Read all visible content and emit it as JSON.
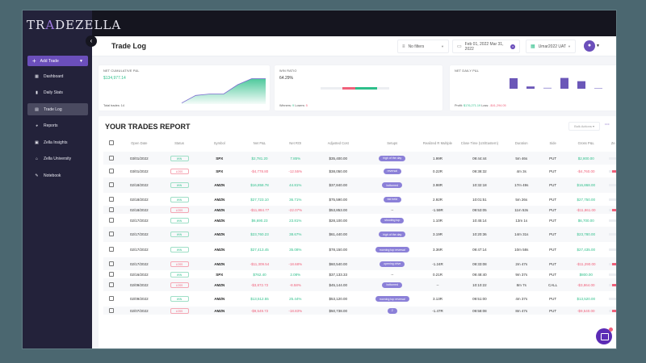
{
  "app": {
    "logo_pre": "TR",
    "logo_mid": "A",
    "logo_post": "DEZELLA"
  },
  "sidebar": {
    "add_trade": "Add Trade",
    "items": [
      {
        "label": "Dashboard",
        "icon": "dashboard-icon"
      },
      {
        "label": "Daily Stats",
        "icon": "bar-chart-icon"
      },
      {
        "label": "Trade Log",
        "icon": "book-icon",
        "active": true
      },
      {
        "label": "Reports",
        "icon": "pie-chart-icon"
      },
      {
        "label": "Zella Insights",
        "icon": "insights-icon"
      },
      {
        "label": "Zella University",
        "icon": "university-icon"
      },
      {
        "label": "Notebook",
        "icon": "pencil-icon"
      }
    ]
  },
  "header": {
    "title": "Trade Log",
    "filter": "No filters",
    "date_range": "Feb 01, 2022 Mar 31, 2022",
    "account": "Umar2022 UAT"
  },
  "cards": {
    "cumulative": {
      "title": "NET CUMULATIVE P&L",
      "value": "$134,977.14",
      "foot_label": "Total trades: ",
      "foot_value": "14"
    },
    "win_ratio": {
      "title": "WIN RATIO",
      "value": "64.29%",
      "winners_label": "Winners: ",
      "winners": "9",
      "losers_label": " Losers: ",
      "losers": "5"
    },
    "daily": {
      "title": "NET DAILY P&L",
      "profit_label": "Profit: ",
      "profit": "$176,271.19",
      "loss_label": " Loss: ",
      "loss": "-$41,294.05"
    }
  },
  "chart_data": [
    {
      "type": "area",
      "title": "NET CUMULATIVE P&L",
      "x": [
        0,
        1,
        2,
        3,
        4,
        5,
        6
      ],
      "values": [
        5,
        40,
        47,
        47,
        90,
        118,
        118
      ]
    },
    {
      "type": "bar",
      "title": "NET DAILY P&L",
      "values": [
        42,
        9,
        4,
        43,
        30,
        3
      ]
    }
  ],
  "report": {
    "title": "YOUR TRADES REPORT",
    "bulk_actions": "Bulk Actions",
    "columns": [
      "",
      "Open Date",
      "Status",
      "Symbol",
      "Net P&L",
      "Net ROI",
      "Adjusted Cost",
      "Setups",
      "Realized R Multiple",
      "Close Time (US/Eastern)",
      "Duration",
      "Side",
      "Gross P&L",
      "Ze"
    ],
    "rows": [
      {
        "date": "03/01/2022",
        "status": "WIN",
        "symbol": "SPX",
        "pnl": "$2,781.20",
        "roi": "7.85%",
        "cost": "$35,400.00",
        "setup": "high of the day",
        "r": "1.99R",
        "close": "09:44:44",
        "dur": "5m 46s",
        "side": "PUT",
        "gross": "$2,800.00"
      },
      {
        "date": "03/01/2022",
        "status": "LOSS",
        "symbol": "SPX",
        "pnl": "-$4,778.80",
        "roi": "-12.55%",
        "cost": "$38,050.00",
        "setup": "reversal",
        "r": "0.22R",
        "close": "09:38:32",
        "dur": "4m 3s",
        "side": "PUT",
        "gross": "-$4,760.00"
      },
      {
        "date": "02/18/2022",
        "status": "WIN",
        "symbol": "AMZN",
        "pnl": "$16,858.78",
        "roi": "44.81%",
        "cost": "$37,840.00",
        "setup": "bottomed",
        "r": "3.98R",
        "close": "10:32:18",
        "dur": "17m 49s",
        "side": "PUT",
        "gross": "$16,868.00"
      },
      {
        "date": "02/18/2022",
        "status": "WIN",
        "symbol": "AMZN",
        "pnl": "$27,723.10",
        "roi": "36.71%",
        "cost": "$75,590.00",
        "setup": "bid held",
        "r": "2.92R",
        "close": "10:01:51",
        "dur": "5m 26s",
        "side": "PUT",
        "gross": "$27,750.00"
      },
      {
        "date": "02/18/2022",
        "status": "LOSS",
        "symbol": "AMZN",
        "pnl": "-$11,884.77",
        "roi": "-22.07%",
        "cost": "$53,853.00",
        "setup": "--",
        "r": "-1.59R",
        "close": "09:53:05",
        "dur": "11m 53s",
        "side": "PUT",
        "gross": "-$11,861.00"
      },
      {
        "date": "02/17/2022",
        "status": "WIN",
        "symbol": "AMZN",
        "pnl": "$6,690.23",
        "roi": "23.81%",
        "cost": "$28,100.00",
        "setup": "shooting top",
        "r": "1.10R",
        "close": "10:45:14",
        "dur": "13m 1s",
        "side": "PUT",
        "gross": "$6,700.00"
      },
      {
        "date": "02/17/2022",
        "status": "WIN",
        "symbol": "AMZN",
        "pnl": "$23,760.23",
        "roi": "38.67%",
        "cost": "$61,440.00",
        "setup": "high of the day",
        "r": "3.19R",
        "close": "10:20:36",
        "dur": "14m 31s",
        "side": "PUT",
        "gross": "$23,780.00"
      },
      {
        "date": "02/17/2022",
        "status": "WIN",
        "symbol": "AMZN",
        "pnl": "$27,413.45",
        "roi": "35.08%",
        "cost": "$78,150.00",
        "setup": "morning top reversal",
        "r": "3.36R",
        "close": "09:47:14",
        "dur": "10m 58s",
        "side": "PUT",
        "gross": "$27,435.00"
      },
      {
        "date": "02/17/2022",
        "status": "LOSS",
        "symbol": "AMZN",
        "pnl": "-$11,309.54",
        "roi": "-18.68%",
        "cost": "$60,540.00",
        "setup": "opening drive",
        "r": "-1.24R",
        "close": "09:33:08",
        "dur": "2m 47s",
        "side": "PUT",
        "gross": "-$11,290.00"
      },
      {
        "date": "02/16/2022",
        "status": "WIN",
        "symbol": "SPX",
        "pnl": "$762.40",
        "roi": "2.08%",
        "cost": "$37,133.33",
        "setup": "--",
        "r": "0.21R",
        "close": "09:48:40",
        "dur": "9m 37s",
        "side": "PUT",
        "gross": "$800.00"
      },
      {
        "date": "02/09/2022",
        "status": "LOSS",
        "symbol": "AMZN",
        "pnl": "-$3,872.72",
        "roi": "-8.58%",
        "cost": "$45,144.00",
        "setup": "bottomed",
        "r": "--",
        "close": "10:10:22",
        "dur": "8m 7s",
        "side": "CALL",
        "gross": "-$3,864.00"
      },
      {
        "date": "02/09/2022",
        "status": "WIN",
        "symbol": "AMZN",
        "pnl": "$13,512.55",
        "roi": "25.44%",
        "cost": "$53,120.00",
        "setup": "morning top reversal",
        "r": "3.13R",
        "close": "09:51:00",
        "dur": "4m 37s",
        "side": "PUT",
        "gross": "$13,520.00"
      },
      {
        "date": "02/07/2022",
        "status": "LOSS",
        "symbol": "AMZN",
        "pnl": "-$9,549.72",
        "roi": "-18.83%",
        "cost": "$50,738.00",
        "setup": "2",
        "r": "-1.47R",
        "close": "09:58:08",
        "dur": "8m 47s",
        "side": "PUT",
        "gross": "-$9,540.00"
      }
    ]
  }
}
